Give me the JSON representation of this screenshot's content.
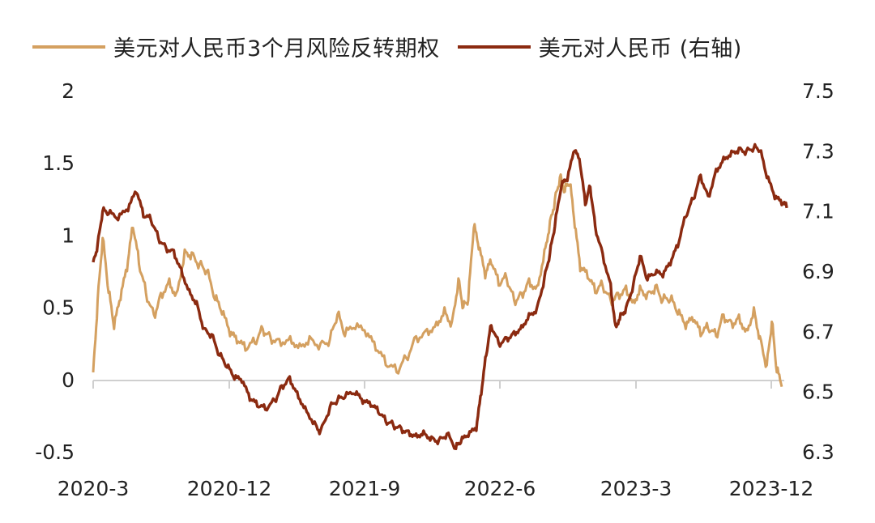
{
  "chart_data": {
    "type": "line",
    "title": "",
    "xlabel": "",
    "ylabel": "",
    "x_tick_labels": [
      "2020-3",
      "2020-12",
      "2021-9",
      "2022-6",
      "2023-3",
      "2023-12"
    ],
    "y_left": {
      "ticks": [
        "2",
        "1.5",
        "1",
        "0.5",
        "0",
        "-0.5"
      ],
      "ylim": [
        -0.5,
        2
      ]
    },
    "y_right": {
      "ticks": [
        "7.5",
        "7.3",
        "7.1",
        "6.9",
        "6.7",
        "6.5",
        "6.3"
      ],
      "ylim": [
        6.3,
        7.5
      ]
    },
    "grid": false,
    "legend_position": "top",
    "series": [
      {
        "name": "美元对人民币3个月风险反转期权",
        "axis": "left",
        "color": "#D4A060",
        "points": [
          [
            "2020-03-01",
            0.05
          ],
          [
            "2020-03-10",
            0.55
          ],
          [
            "2020-03-20",
            0.98
          ],
          [
            "2020-04-01",
            0.6
          ],
          [
            "2020-04-12",
            0.35
          ],
          [
            "2020-04-25",
            0.55
          ],
          [
            "2020-05-08",
            0.75
          ],
          [
            "2020-05-20",
            1.05
          ],
          [
            "2020-06-01",
            0.8
          ],
          [
            "2020-06-15",
            0.6
          ],
          [
            "2020-07-01",
            0.45
          ],
          [
            "2020-07-15",
            0.6
          ],
          [
            "2020-08-01",
            0.7
          ],
          [
            "2020-08-15",
            0.6
          ],
          [
            "2020-09-01",
            0.9
          ],
          [
            "2020-09-15",
            0.88
          ],
          [
            "2020-10-01",
            0.8
          ],
          [
            "2020-10-15",
            0.75
          ],
          [
            "2020-11-01",
            0.55
          ],
          [
            "2020-11-15",
            0.45
          ],
          [
            "2020-12-01",
            0.3
          ],
          [
            "2020-12-15",
            0.25
          ],
          [
            "2021-01-01",
            0.2
          ],
          [
            "2021-01-20",
            0.25
          ],
          [
            "2021-02-05",
            0.35
          ],
          [
            "2021-02-20",
            0.3
          ],
          [
            "2021-03-10",
            0.28
          ],
          [
            "2021-04-01",
            0.3
          ],
          [
            "2021-04-20",
            0.25
          ],
          [
            "2021-05-10",
            0.3
          ],
          [
            "2021-06-01",
            0.25
          ],
          [
            "2021-06-20",
            0.28
          ],
          [
            "2021-07-05",
            0.45
          ],
          [
            "2021-07-20",
            0.3
          ],
          [
            "2021-08-10",
            0.35
          ],
          [
            "2021-09-01",
            0.3
          ],
          [
            "2021-09-20",
            0.2
          ],
          [
            "2021-10-10",
            0.1
          ],
          [
            "2021-11-01",
            0.05
          ],
          [
            "2021-11-20",
            0.15
          ],
          [
            "2021-12-10",
            0.3
          ],
          [
            "2022-01-01",
            0.35
          ],
          [
            "2022-01-20",
            0.4
          ],
          [
            "2022-02-05",
            0.5
          ],
          [
            "2022-02-20",
            0.4
          ],
          [
            "2022-03-05",
            0.7
          ],
          [
            "2022-03-15",
            0.5
          ],
          [
            "2022-03-25",
            0.55
          ],
          [
            "2022-04-05",
            1.05
          ],
          [
            "2022-04-15",
            0.9
          ],
          [
            "2022-04-28",
            0.7
          ],
          [
            "2022-05-10",
            0.8
          ],
          [
            "2022-05-25",
            0.65
          ],
          [
            "2022-06-10",
            0.7
          ],
          [
            "2022-06-25",
            0.55
          ],
          [
            "2022-07-10",
            0.6
          ],
          [
            "2022-07-25",
            0.7
          ],
          [
            "2022-08-10",
            0.65
          ],
          [
            "2022-08-25",
            0.9
          ],
          [
            "2022-09-05",
            1.1
          ],
          [
            "2022-09-15",
            1.25
          ],
          [
            "2022-09-25",
            1.4
          ],
          [
            "2022-10-05",
            1.3
          ],
          [
            "2022-10-15",
            1.35
          ],
          [
            "2022-10-25",
            1.05
          ],
          [
            "2022-11-05",
            0.75
          ],
          [
            "2022-11-20",
            0.7
          ],
          [
            "2022-12-05",
            0.6
          ],
          [
            "2022-12-20",
            0.65
          ],
          [
            "2023-01-05",
            0.55
          ],
          [
            "2023-01-20",
            0.6
          ],
          [
            "2023-02-05",
            0.65
          ],
          [
            "2023-02-20",
            0.55
          ],
          [
            "2023-03-05",
            0.65
          ],
          [
            "2023-03-20",
            0.6
          ],
          [
            "2023-04-05",
            0.65
          ],
          [
            "2023-04-20",
            0.55
          ],
          [
            "2023-05-05",
            0.55
          ],
          [
            "2023-05-20",
            0.45
          ],
          [
            "2023-06-05",
            0.35
          ],
          [
            "2023-06-20",
            0.4
          ],
          [
            "2023-07-05",
            0.3
          ],
          [
            "2023-07-20",
            0.35
          ],
          [
            "2023-08-05",
            0.3
          ],
          [
            "2023-08-20",
            0.45
          ],
          [
            "2023-09-05",
            0.4
          ],
          [
            "2023-09-20",
            0.45
          ],
          [
            "2023-10-05",
            0.35
          ],
          [
            "2023-10-20",
            0.5
          ],
          [
            "2023-11-01",
            0.3
          ],
          [
            "2023-11-15",
            0.1
          ],
          [
            "2023-11-25",
            0.4
          ],
          [
            "2023-12-05",
            0.05
          ],
          [
            "2023-12-15",
            -0.05
          ]
        ]
      },
      {
        "name": "美元对人民币 (右轴)",
        "axis": "right",
        "color": "#8B2A10",
        "points": [
          [
            "2020-03-01",
            6.93
          ],
          [
            "2020-03-10",
            6.99
          ],
          [
            "2020-03-20",
            7.1
          ],
          [
            "2020-04-01",
            7.09
          ],
          [
            "2020-04-20",
            7.07
          ],
          [
            "2020-05-10",
            7.1
          ],
          [
            "2020-05-27",
            7.16
          ],
          [
            "2020-06-10",
            7.08
          ],
          [
            "2020-06-25",
            7.07
          ],
          [
            "2020-07-10",
            7.01
          ],
          [
            "2020-07-25",
            6.98
          ],
          [
            "2020-08-10",
            6.97
          ],
          [
            "2020-08-25",
            6.91
          ],
          [
            "2020-09-10",
            6.84
          ],
          [
            "2020-09-25",
            6.8
          ],
          [
            "2020-10-10",
            6.71
          ],
          [
            "2020-10-25",
            6.69
          ],
          [
            "2020-11-10",
            6.62
          ],
          [
            "2020-11-25",
            6.58
          ],
          [
            "2020-12-10",
            6.54
          ],
          [
            "2020-12-25",
            6.53
          ],
          [
            "2021-01-10",
            6.47
          ],
          [
            "2021-01-25",
            6.45
          ],
          [
            "2021-02-10",
            6.44
          ],
          [
            "2021-03-01",
            6.47
          ],
          [
            "2021-03-15",
            6.52
          ],
          [
            "2021-03-31",
            6.55
          ],
          [
            "2021-04-15",
            6.5
          ],
          [
            "2021-05-01",
            6.45
          ],
          [
            "2021-05-20",
            6.4
          ],
          [
            "2021-06-01",
            6.37
          ],
          [
            "2021-06-20",
            6.45
          ],
          [
            "2021-07-05",
            6.47
          ],
          [
            "2021-07-20",
            6.48
          ],
          [
            "2021-08-10",
            6.49
          ],
          [
            "2021-08-25",
            6.46
          ],
          [
            "2021-09-10",
            6.45
          ],
          [
            "2021-09-25",
            6.43
          ],
          [
            "2021-10-10",
            6.4
          ],
          [
            "2021-10-25",
            6.39
          ],
          [
            "2021-11-10",
            6.38
          ],
          [
            "2021-11-25",
            6.37
          ],
          [
            "2021-12-10",
            6.36
          ],
          [
            "2021-12-25",
            6.37
          ],
          [
            "2022-01-10",
            6.35
          ],
          [
            "2022-01-25",
            6.34
          ],
          [
            "2022-02-10",
            6.36
          ],
          [
            "2022-02-28",
            6.31
          ],
          [
            "2022-03-10",
            6.33
          ],
          [
            "2022-03-25",
            6.35
          ],
          [
            "2022-04-10",
            6.37
          ],
          [
            "2022-04-20",
            6.49
          ],
          [
            "2022-04-30",
            6.62
          ],
          [
            "2022-05-10",
            6.72
          ],
          [
            "2022-05-25",
            6.66
          ],
          [
            "2022-06-10",
            6.68
          ],
          [
            "2022-06-25",
            6.7
          ],
          [
            "2022-07-10",
            6.72
          ],
          [
            "2022-07-25",
            6.76
          ],
          [
            "2022-08-10",
            6.78
          ],
          [
            "2022-08-25",
            6.88
          ],
          [
            "2022-09-05",
            6.96
          ],
          [
            "2022-09-15",
            7.05
          ],
          [
            "2022-09-28",
            7.18
          ],
          [
            "2022-10-10",
            7.2
          ],
          [
            "2022-10-25",
            7.3
          ],
          [
            "2022-11-05",
            7.25
          ],
          [
            "2022-11-15",
            7.12
          ],
          [
            "2022-11-25",
            7.18
          ],
          [
            "2022-12-05",
            7.05
          ],
          [
            "2022-12-20",
            6.96
          ],
          [
            "2023-01-05",
            6.86
          ],
          [
            "2023-01-15",
            6.72
          ],
          [
            "2023-01-25",
            6.76
          ],
          [
            "2023-02-05",
            6.78
          ],
          [
            "2023-02-20",
            6.86
          ],
          [
            "2023-03-05",
            6.95
          ],
          [
            "2023-03-20",
            6.87
          ],
          [
            "2023-04-05",
            6.89
          ],
          [
            "2023-04-20",
            6.88
          ],
          [
            "2023-05-05",
            6.92
          ],
          [
            "2023-05-20",
            6.98
          ],
          [
            "2023-06-05",
            7.08
          ],
          [
            "2023-06-20",
            7.14
          ],
          [
            "2023-07-05",
            7.22
          ],
          [
            "2023-07-20",
            7.15
          ],
          [
            "2023-08-05",
            7.24
          ],
          [
            "2023-08-20",
            7.28
          ],
          [
            "2023-09-05",
            7.3
          ],
          [
            "2023-09-20",
            7.31
          ],
          [
            "2023-10-05",
            7.3
          ],
          [
            "2023-10-20",
            7.31
          ],
          [
            "2023-11-01",
            7.3
          ],
          [
            "2023-11-15",
            7.21
          ],
          [
            "2023-12-01",
            7.14
          ],
          [
            "2023-12-15",
            7.12
          ],
          [
            "2023-12-25",
            7.11
          ]
        ]
      }
    ]
  }
}
